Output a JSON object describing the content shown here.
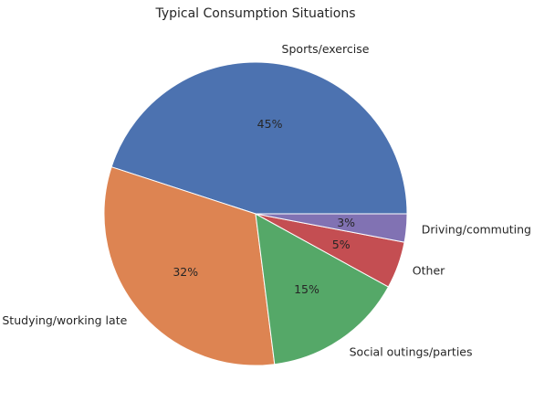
{
  "chart_data": {
    "type": "pie",
    "title": "Typical Consumption Situations",
    "categories": [
      "Sports/exercise",
      "Studying/working late",
      "Social outings/parties",
      "Other",
      "Driving/commuting"
    ],
    "values": [
      45,
      32,
      15,
      5,
      3
    ],
    "value_labels": [
      "45%",
      "32%",
      "15%",
      "5%",
      "3%"
    ],
    "colors": [
      "#4c72b0",
      "#dd8452",
      "#55a868",
      "#c44e52",
      "#8172b3"
    ],
    "start_angle_deg": 0,
    "direction": "counterclockwise",
    "legend": "none"
  }
}
